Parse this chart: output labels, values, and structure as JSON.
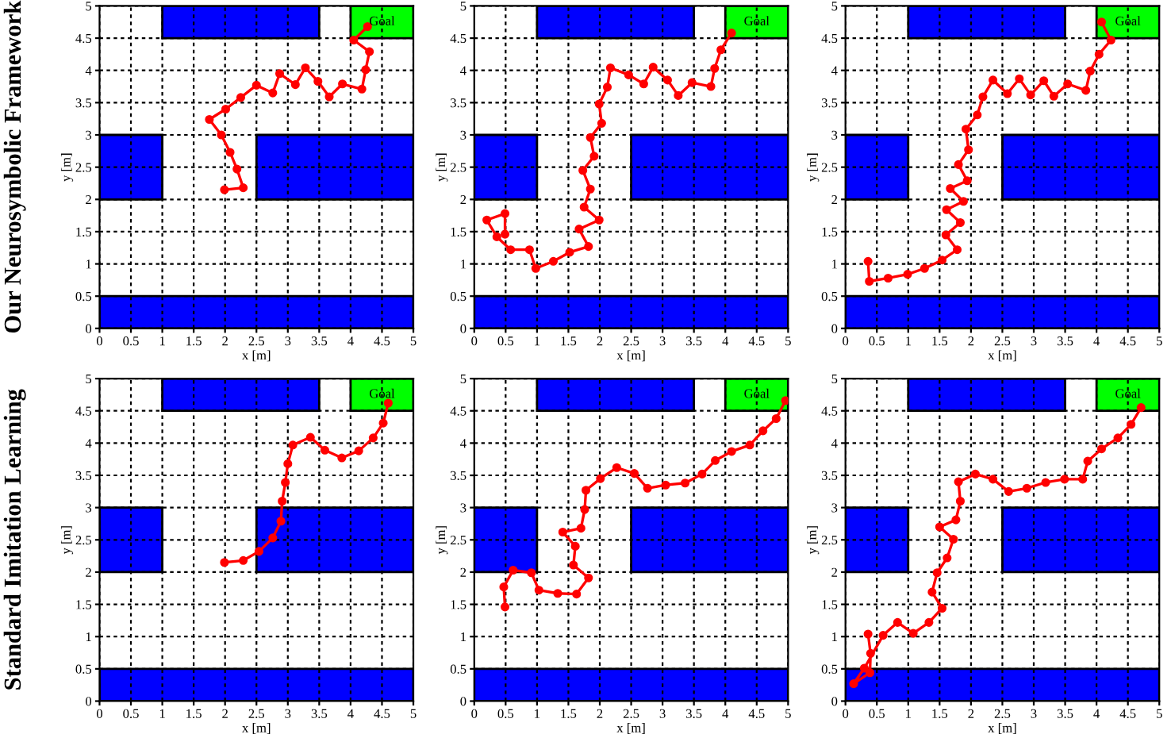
{
  "chart_data": [
    {
      "type": "line",
      "xlabel": "x [m]",
      "ylabel": "y [m]",
      "xlim": [
        0,
        5
      ],
      "ylim": [
        0,
        5
      ],
      "xticks": [
        0,
        0.5,
        1,
        1.5,
        2,
        2.5,
        3,
        3.5,
        4,
        4.5,
        5
      ],
      "yticks": [
        0,
        0.5,
        1,
        1.5,
        2,
        2.5,
        3,
        3.5,
        4,
        4.5,
        5
      ],
      "grid": true,
      "marker": "circle",
      "annotations": [
        "Our Neurosymbolic Framework",
        "Goal"
      ],
      "series": [
        {
          "color": "#ff0000",
          "x": [
            1.99,
            2.29,
            2.19,
            2.08,
            1.94,
            1.75,
            2.01,
            2.25,
            2.5,
            2.76,
            2.87,
            3.12,
            3.28,
            3.48,
            3.66,
            3.87,
            4.18,
            4.24,
            4.3,
            4.05,
            4.27
          ],
          "values": [
            2.15,
            2.18,
            2.47,
            2.73,
            3.0,
            3.24,
            3.4,
            3.58,
            3.77,
            3.65,
            3.95,
            3.78,
            4.04,
            3.83,
            3.59,
            3.79,
            3.71,
            4.01,
            4.29,
            4.47,
            4.68
          ]
        }
      ]
    },
    {
      "type": "line",
      "xlabel": "x [m]",
      "ylabel": "y [m]",
      "xlim": [
        0,
        5
      ],
      "ylim": [
        0,
        5
      ],
      "xticks": [
        0,
        0.5,
        1,
        1.5,
        2,
        2.5,
        3,
        3.5,
        4,
        4.5,
        5
      ],
      "yticks": [
        0,
        0.5,
        1,
        1.5,
        2,
        2.5,
        3,
        3.5,
        4,
        4.5,
        5
      ],
      "grid": true,
      "marker": "circle",
      "annotations": [
        "Goal"
      ],
      "series": [
        {
          "color": "#ff0000",
          "x": [
            0.49,
            0.49,
            0.2,
            0.36,
            0.58,
            0.88,
            0.98,
            1.26,
            1.52,
            1.82,
            1.67,
            1.99,
            1.75,
            1.85,
            1.73,
            1.91,
            1.85,
            2.03,
            1.99,
            2.12,
            2.17,
            2.46,
            2.7,
            2.85,
            3.08,
            3.25,
            3.47,
            3.77,
            3.83,
            3.93,
            4.1
          ],
          "values": [
            1.46,
            1.78,
            1.68,
            1.42,
            1.22,
            1.22,
            0.93,
            1.04,
            1.18,
            1.27,
            1.54,
            1.68,
            1.88,
            2.16,
            2.45,
            2.67,
            2.96,
            3.18,
            3.48,
            3.74,
            4.04,
            3.93,
            3.79,
            4.05,
            3.85,
            3.61,
            3.81,
            3.75,
            4.03,
            4.32,
            4.58
          ]
        }
      ]
    },
    {
      "type": "line",
      "xlabel": "x [m]",
      "ylabel": "y [m]",
      "xlim": [
        0,
        5
      ],
      "ylim": [
        0,
        5
      ],
      "xticks": [
        0,
        0.5,
        1,
        1.5,
        2,
        2.5,
        3,
        3.5,
        4,
        4.5,
        5
      ],
      "yticks": [
        0,
        0.5,
        1,
        1.5,
        2,
        2.5,
        3,
        3.5,
        4,
        4.5,
        5
      ],
      "grid": true,
      "marker": "circle",
      "annotations": [
        "Goal"
      ],
      "series": [
        {
          "color": "#ff0000",
          "x": [
            0.36,
            0.38,
            0.68,
            0.99,
            1.26,
            1.54,
            1.78,
            1.6,
            1.83,
            1.61,
            1.88,
            1.67,
            1.94,
            1.8,
            1.96,
            1.92,
            2.1,
            2.19,
            2.35,
            2.58,
            2.77,
            2.95,
            3.16,
            3.32,
            3.54,
            3.83,
            3.9,
            4.04,
            4.23,
            4.08
          ],
          "values": [
            1.04,
            0.73,
            0.78,
            0.84,
            0.93,
            1.06,
            1.22,
            1.45,
            1.64,
            1.84,
            1.97,
            2.17,
            2.29,
            2.54,
            2.77,
            3.09,
            3.31,
            3.59,
            3.85,
            3.64,
            3.87,
            3.62,
            3.84,
            3.6,
            3.79,
            3.69,
            3.99,
            4.25,
            4.47,
            4.75
          ]
        }
      ]
    },
    {
      "type": "line",
      "xlabel": "x [m]",
      "ylabel": "y [m]",
      "xlim": [
        0,
        5
      ],
      "ylim": [
        0,
        5
      ],
      "xticks": [
        0,
        0.5,
        1,
        1.5,
        2,
        2.5,
        3,
        3.5,
        4,
        4.5,
        5
      ],
      "yticks": [
        0,
        0.5,
        1,
        1.5,
        2,
        2.5,
        3,
        3.5,
        4,
        4.5,
        5
      ],
      "grid": true,
      "marker": "circle",
      "annotations": [
        "Standard Imitation Learning",
        "Goal"
      ],
      "series": [
        {
          "color": "#ff0000",
          "x": [
            1.99,
            2.29,
            2.54,
            2.76,
            2.89,
            2.91,
            2.96,
            3.0,
            3.08,
            3.36,
            3.59,
            3.86,
            4.13,
            4.36,
            4.52,
            4.6
          ],
          "values": [
            2.15,
            2.18,
            2.32,
            2.53,
            2.79,
            3.1,
            3.39,
            3.68,
            3.97,
            4.09,
            3.89,
            3.77,
            3.88,
            4.08,
            4.31,
            4.62
          ]
        }
      ]
    },
    {
      "type": "line",
      "xlabel": "x [m]",
      "ylabel": "y [m]",
      "xlim": [
        0,
        5
      ],
      "ylim": [
        0,
        5
      ],
      "xticks": [
        0,
        0.5,
        1,
        1.5,
        2,
        2.5,
        3,
        3.5,
        4,
        4.5,
        5
      ],
      "yticks": [
        0,
        0.5,
        1,
        1.5,
        2,
        2.5,
        3,
        3.5,
        4,
        4.5,
        5
      ],
      "grid": true,
      "marker": "circle",
      "annotations": [
        "Goal"
      ],
      "series": [
        {
          "color": "#ff0000",
          "x": [
            0.49,
            0.47,
            0.62,
            0.91,
            1.03,
            1.33,
            1.63,
            1.82,
            1.58,
            1.61,
            1.41,
            1.7,
            1.76,
            1.78,
            2.01,
            2.27,
            2.55,
            2.76,
            3.05,
            3.36,
            3.63,
            3.84,
            4.1,
            4.39,
            4.6,
            4.81,
            4.96
          ],
          "values": [
            1.46,
            1.77,
            2.03,
            1.99,
            1.72,
            1.67,
            1.66,
            1.91,
            2.11,
            2.4,
            2.62,
            2.68,
            2.97,
            3.27,
            3.45,
            3.62,
            3.53,
            3.3,
            3.35,
            3.38,
            3.52,
            3.73,
            3.87,
            3.97,
            4.19,
            4.38,
            4.66
          ]
        }
      ]
    },
    {
      "type": "line",
      "xlabel": "x [m]",
      "ylabel": "y [m]",
      "xlim": [
        0,
        5
      ],
      "ylim": [
        0,
        5
      ],
      "xticks": [
        0,
        0.5,
        1,
        1.5,
        2,
        2.5,
        3,
        3.5,
        4,
        4.5,
        5
      ],
      "yticks": [
        0,
        0.5,
        1,
        1.5,
        2,
        2.5,
        3,
        3.5,
        4,
        4.5,
        5
      ],
      "grid": true,
      "marker": "circle",
      "annotations": [
        "Goal"
      ],
      "series": [
        {
          "color": "#ff0000",
          "x": [
            0.36,
            0.4,
            0.39,
            0.13,
            0.3,
            0.6,
            0.83,
            1.08,
            1.33,
            1.54,
            1.38,
            1.46,
            1.62,
            1.72,
            1.5,
            1.76,
            1.83,
            1.8,
            2.07,
            2.35,
            2.6,
            2.89,
            3.19,
            3.49,
            3.78,
            3.86,
            4.08,
            4.34,
            4.55,
            4.71
          ],
          "values": [
            1.04,
            0.74,
            0.44,
            0.27,
            0.51,
            1.02,
            1.22,
            1.05,
            1.22,
            1.44,
            1.69,
            1.99,
            2.22,
            2.51,
            2.7,
            2.81,
            3.1,
            3.4,
            3.52,
            3.44,
            3.25,
            3.3,
            3.39,
            3.44,
            3.44,
            3.72,
            3.91,
            4.08,
            4.29,
            4.55
          ]
        }
      ]
    }
  ]
}
